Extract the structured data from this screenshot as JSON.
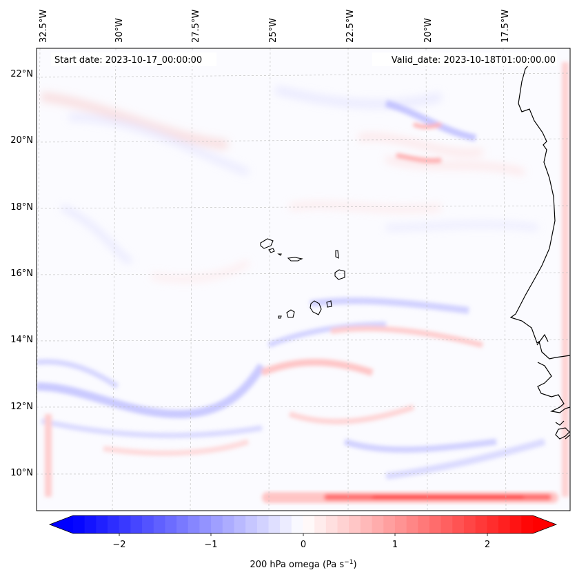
{
  "header": {
    "start_date": "Start date: 2023-10-17_00:00:00",
    "valid_date": "Valid_date: 2023-10-18T01:00:00.00"
  },
  "map": {
    "lon_labels": [
      "32.5°W",
      "30°W",
      "27.5°W",
      "25°W",
      "22.5°W",
      "20°W",
      "17.5°W"
    ],
    "lat_labels": [
      "22°N",
      "20°N",
      "18°N",
      "16°N",
      "14°N",
      "12°N",
      "10°N"
    ],
    "gridlines": "dashed",
    "field": "200 hPa omega",
    "colormap": "bwr",
    "colors": {
      "negative": "#0000ff",
      "zero": "#ffffff",
      "positive": "#ff0000",
      "coast": "#000000"
    }
  },
  "colorbar": {
    "ticks": [
      "−2",
      "−1",
      "0",
      "1",
      "2"
    ],
    "label_main": "200 hPa omega (Pa s",
    "label_exp": "−1",
    "label_end": ")"
  }
}
